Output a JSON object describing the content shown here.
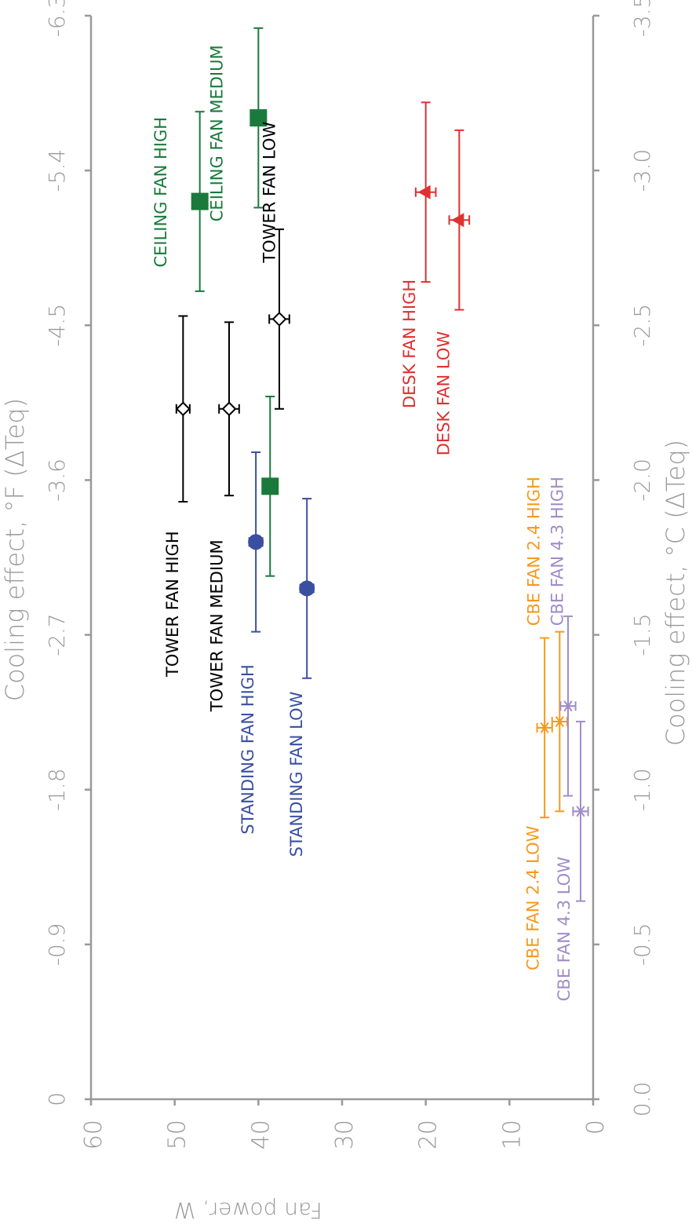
{
  "chart_data": {
    "type": "scatter",
    "orientation": "rotated-90-ccw",
    "x_axis": {
      "label": "Fan power, W",
      "range": [
        0,
        60
      ],
      "ticks": [
        "0",
        "10",
        "20",
        "30",
        "40",
        "50",
        "60"
      ]
    },
    "y_axis_celsius": {
      "label": "Cooling effect, °C (ΔTeq)",
      "range": [
        0.0,
        -3.5
      ],
      "ticks": [
        "0.0",
        "-0.5",
        "-1.0",
        "-1.5",
        "-2.0",
        "-2.5",
        "-3.0",
        "-3.5"
      ]
    },
    "y_axis_fahrenheit": {
      "label": "Cooling effect, °F (ΔTeq)",
      "range": [
        0,
        -6.3
      ],
      "ticks": [
        "0",
        "-0.9",
        "-1.8",
        "-2.7",
        "-3.6",
        "-4.5",
        "-5.4",
        "-6.3"
      ]
    },
    "colors": {
      "tower": "#000000",
      "ceiling": "#1a7a3c",
      "standing": "#3a4fa0",
      "desk": "#e03030",
      "cbe24": "#f5991f",
      "cbe43": "#a08cc8",
      "axis": "#999999"
    },
    "points": [
      {
        "label": "TOWER FAN HIGH",
        "group": "tower",
        "marker": "diamond",
        "power": 49.0,
        "cooling_c": -2.23,
        "power_err": 0.8,
        "cooling_err": 0.3
      },
      {
        "label": "TOWER FAN MEDIUM",
        "group": "tower",
        "marker": "diamond",
        "power": 43.5,
        "cooling_c": -2.23,
        "power_err": 1.2,
        "cooling_err": 0.28
      },
      {
        "label": "TOWER FAN LOW",
        "group": "tower",
        "marker": "diamond",
        "power": 37.5,
        "cooling_c": -2.52,
        "power_err": 1.2,
        "cooling_err": 0.29
      },
      {
        "label": "CEILING FAN HIGH",
        "group": "ceiling",
        "marker": "square",
        "power": 47.0,
        "cooling_c": -2.9,
        "power_err": 0,
        "cooling_err": 0.29
      },
      {
        "label": "CEILING FAN MEDIUM",
        "group": "ceiling",
        "marker": "square",
        "power": 40.0,
        "cooling_c": -3.17,
        "power_err": 0,
        "cooling_err": 0.29
      },
      {
        "label": "",
        "group": "ceiling",
        "marker": "square",
        "power": 38.6,
        "cooling_c": -1.98,
        "power_err": 0,
        "cooling_err": 0.29
      },
      {
        "label": "STANDING FAN HIGH",
        "group": "standing",
        "marker": "circle",
        "power": 40.3,
        "cooling_c": -1.8,
        "power_err": 0.8,
        "cooling_err": 0.29
      },
      {
        "label": "STANDING FAN LOW",
        "group": "standing",
        "marker": "circle",
        "power": 34.2,
        "cooling_c": -1.65,
        "power_err": 0.8,
        "cooling_err": 0.29
      },
      {
        "label": "DESK FAN HIGH",
        "group": "desk",
        "marker": "triangle",
        "power": 20.0,
        "cooling_c": -2.93,
        "power_err": 1.2,
        "cooling_err": 0.29
      },
      {
        "label": "DESK FAN LOW",
        "group": "desk",
        "marker": "triangle",
        "power": 16.0,
        "cooling_c": -2.84,
        "power_err": 1.2,
        "cooling_err": 0.29
      },
      {
        "label": "CBE FAN 2.4 HIGH",
        "group": "cbe24",
        "marker": "asterisk",
        "power": 4.0,
        "cooling_c": -1.22,
        "power_err": 0.9,
        "cooling_err": 0.29
      },
      {
        "label": "CBE FAN 2.4 LOW",
        "group": "cbe24",
        "marker": "asterisk",
        "power": 5.8,
        "cooling_c": -1.2,
        "power_err": 0.9,
        "cooling_err": 0.29
      },
      {
        "label": "CBE FAN 4.3 HIGH",
        "group": "cbe43",
        "marker": "asterisk",
        "power": 3.0,
        "cooling_c": -1.27,
        "power_err": 0.9,
        "cooling_err": 0.29
      },
      {
        "label": "CBE FAN 4.3 LOW",
        "group": "cbe43",
        "marker": "asterisk",
        "power": 1.5,
        "cooling_c": -0.93,
        "power_err": 0.9,
        "cooling_err": 0.29
      }
    ],
    "label_positions": [
      {
        "text": "TOWER FAN HIGH",
        "group": "tower",
        "power": 49.6,
        "cooling_c": -1.6
      },
      {
        "text": "TOWER FAN MEDIUM",
        "group": "tower",
        "power": 44.3,
        "cooling_c": -1.53
      },
      {
        "text": "TOWER FAN LOW",
        "group": "tower",
        "power": 38.0,
        "cooling_c": -2.93
      },
      {
        "text": "CEILING FAN HIGH",
        "group": "ceiling",
        "power": 51.0,
        "cooling_c": -2.93
      },
      {
        "text": "CEILING FAN MEDIUM",
        "group": "ceiling",
        "power": 44.3,
        "cooling_c": -3.12
      },
      {
        "text": "STANDING FAN HIGH",
        "group": "standing",
        "power": 40.6,
        "cooling_c": -1.13
      },
      {
        "text": "STANDING FAN LOW",
        "group": "standing",
        "power": 34.8,
        "cooling_c": -1.05
      },
      {
        "text": "DESK FAN HIGH",
        "group": "desk",
        "power": 21.3,
        "cooling_c": -2.44
      },
      {
        "text": "DESK FAN LOW",
        "group": "desk",
        "power": 17.2,
        "cooling_c": -2.28
      },
      {
        "text": "CBE FAN 2.4 HIGH",
        "group": "cbe24",
        "power": 6.4,
        "cooling_c": -1.77
      },
      {
        "text": "CBE FAN 4.3 HIGH",
        "group": "cbe43",
        "power": 3.6,
        "cooling_c": -1.77
      },
      {
        "text": "CBE FAN 2.4 LOW",
        "group": "cbe24",
        "power": 6.5,
        "cooling_c": -0.65
      },
      {
        "text": "CBE FAN 4.3 LOW",
        "group": "cbe43",
        "power": 2.8,
        "cooling_c": -0.55
      }
    ]
  }
}
